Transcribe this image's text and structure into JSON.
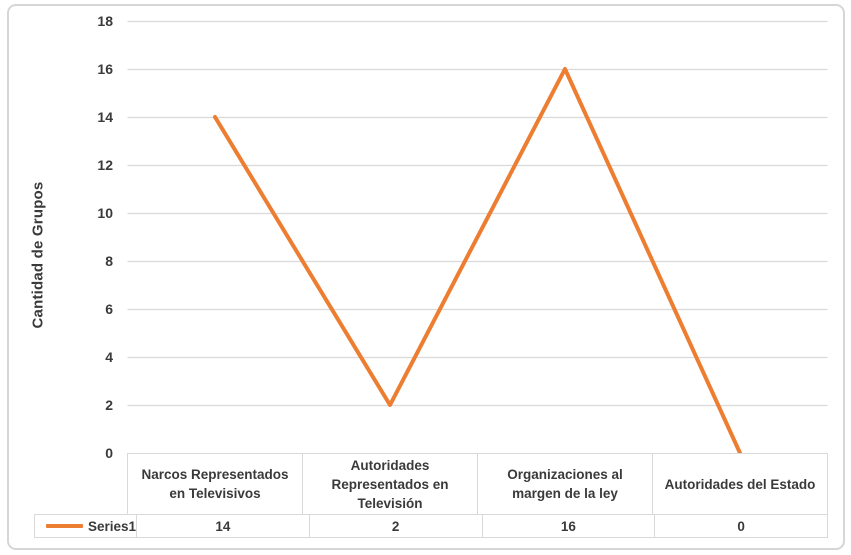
{
  "chart_data": {
    "type": "line",
    "title": "",
    "xlabel": "",
    "ylabel": "Cantidad de Grupos",
    "categories": [
      "Narcos Representados en Televisivos",
      "Autoridades Representados en Televisión",
      "Organizaciones al margen de la ley",
      "Autoridades del Estado"
    ],
    "series": [
      {
        "name": "Series1",
        "values": [
          14,
          2,
          16,
          0
        ]
      }
    ],
    "ylim": [
      0,
      18
    ],
    "yticks": [
      0,
      2,
      4,
      6,
      8,
      10,
      12,
      14,
      16,
      18
    ],
    "grid": true,
    "legend_position": "data-table-left",
    "line_color": "#ED7D31",
    "gridline_color": "#D9D9D9",
    "table_border_color": "#D9D9D9",
    "text_color": "#3A3A3A"
  }
}
